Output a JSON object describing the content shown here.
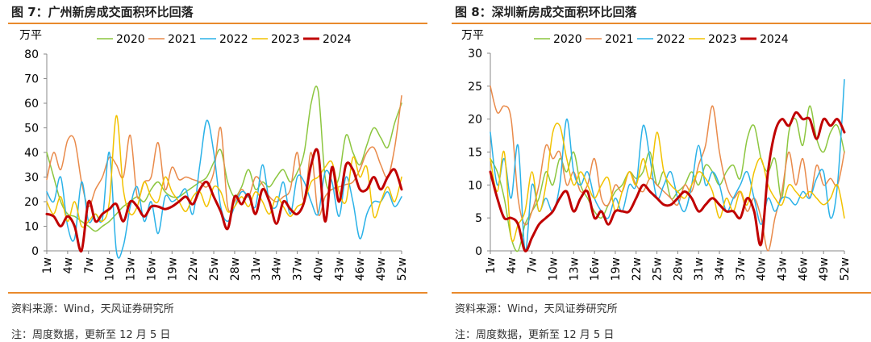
{
  "charts": [
    {
      "title": "图 7：广州新房成交面积环比回落",
      "source": "资料来源：Wind，天风证券研究所",
      "note": "注：周度数据，更新至 12 月 5 日",
      "chart_data": {
        "type": "line",
        "unit": "万平",
        "ylim": [
          0,
          80
        ],
        "yticks": [
          0,
          10,
          20,
          30,
          40,
          50,
          60,
          70,
          80
        ],
        "xtick_labels": [
          "1w",
          "4w",
          "7w",
          "10w",
          "13w",
          "16w",
          "19w",
          "22w",
          "25w",
          "28w",
          "31w",
          "34w",
          "37w",
          "40w",
          "43w",
          "46w",
          "49w",
          "52w"
        ],
        "x": [
          1,
          2,
          3,
          4,
          5,
          6,
          7,
          8,
          9,
          10,
          11,
          12,
          13,
          14,
          15,
          16,
          17,
          18,
          19,
          20,
          21,
          22,
          23,
          24,
          25,
          26,
          27,
          28,
          29,
          30,
          31,
          32,
          33,
          34,
          35,
          36,
          37,
          38,
          39,
          40,
          41,
          42,
          43,
          44,
          45,
          46,
          47,
          48,
          49,
          50,
          51,
          52
        ],
        "grid": false,
        "legend": "top",
        "series": [
          {
            "name": "2020",
            "color": "#8cc63f",
            "width": 1.5,
            "values": [
              40,
              30,
              20,
              15,
              14,
              12,
              10,
              8,
              10,
              12,
              15,
              18,
              20,
              22,
              20,
              25,
              28,
              24,
              22,
              22,
              24,
              26,
              28,
              30,
              36,
              41,
              28,
              22,
              26,
              33,
              25,
              28,
              26,
              30,
              33,
              28,
              32,
              40,
              60,
              65,
              30,
              25,
              30,
              47,
              40,
              35,
              43,
              50,
              46,
              42,
              52,
              60
            ]
          },
          {
            "name": "2021",
            "color": "#e98a4a",
            "width": 1.5,
            "values": [
              29,
              40,
              33,
              45,
              45,
              28,
              18,
              25,
              30,
              38,
              35,
              30,
              47,
              22,
              28,
              30,
              44,
              25,
              34,
              29,
              30,
              29,
              28,
              26,
              32,
              50,
              18,
              20,
              25,
              22,
              30,
              27,
              22,
              20,
              22,
              25,
              40,
              20,
              40,
              15,
              22,
              25,
              26,
              27,
              28,
              33,
              40,
              42,
              35,
              30,
              42,
              63
            ]
          },
          {
            "name": "2022",
            "color": "#2bb2e8",
            "width": 1.5,
            "values": [
              24,
              20,
              30,
              10,
              5,
              28,
              12,
              15,
              13,
              40,
              0,
              2,
              18,
              26,
              12,
              20,
              7,
              22,
              20,
              22,
              25,
              15,
              35,
              53,
              40,
              18,
              12,
              18,
              24,
              22,
              18,
              35,
              20,
              18,
              28,
              15,
              30,
              28,
              20,
              15,
              32,
              28,
              14,
              30,
              20,
              5,
              15,
              20,
              20,
              24,
              18,
              22
            ]
          },
          {
            "name": "2023",
            "color": "#f2c200",
            "width": 1.5,
            "values": [
              20,
              15,
              22,
              12,
              20,
              10,
              12,
              15,
              12,
              20,
              55,
              25,
              15,
              18,
              28,
              22,
              20,
              30,
              24,
              20,
              16,
              22,
              24,
              18,
              26,
              24,
              16,
              18,
              22,
              18,
              24,
              20,
              15,
              22,
              18,
              14,
              18,
              20,
              28,
              30,
              34,
              36,
              24,
              20,
              38,
              30,
              34,
              14,
              20,
              26,
              20,
              30
            ]
          },
          {
            "name": "2024",
            "color": "#c00000",
            "width": 3,
            "values": [
              15,
              14,
              10,
              14,
              10,
              0,
              20,
              12,
              15,
              17,
              19,
              12,
              20,
              18,
              14,
              18,
              18,
              17,
              18,
              20,
              22,
              19,
              25,
              28,
              22,
              16,
              9,
              22,
              19,
              23,
              15,
              25,
              20,
              11,
              20,
              17,
              15,
              20,
              35,
              40,
              12,
              34,
              20,
              35,
              33,
              25,
              25,
              30,
              25,
              30,
              33,
              25
            ]
          }
        ]
      }
    },
    {
      "title": "图 8：深圳新房成交面积环比回落",
      "source": "资料来源：Wind，天风证券研究所",
      "note": "注：周度数据，更新至 12 月 5 日",
      "chart_data": {
        "type": "line",
        "unit": "万平",
        "ylim": [
          0,
          30
        ],
        "yticks": [
          0,
          5,
          10,
          15,
          20,
          25,
          30
        ],
        "xtick_labels": [
          "1w",
          "4w",
          "7w",
          "10w",
          "13w",
          "16w",
          "19w",
          "22w",
          "25w",
          "28w",
          "31w",
          "34w",
          "37w",
          "40w",
          "43w",
          "46w",
          "49w",
          "52w"
        ],
        "x": [
          1,
          2,
          3,
          4,
          5,
          6,
          7,
          8,
          9,
          10,
          11,
          12,
          13,
          14,
          15,
          16,
          17,
          18,
          19,
          20,
          21,
          22,
          23,
          24,
          25,
          26,
          27,
          28,
          29,
          30,
          31,
          32,
          33,
          34,
          35,
          36,
          37,
          38,
          39,
          40,
          41,
          42,
          43,
          44,
          45,
          46,
          47,
          48,
          49,
          50,
          51,
          52
        ],
        "grid": false,
        "legend": "top",
        "series": [
          {
            "name": "2020",
            "color": "#8cc63f",
            "width": 1.5,
            "values": [
              14,
              12,
              8,
              2,
              0,
              4,
              6,
              8,
              12,
              10,
              14,
              12,
              15,
              10,
              8,
              6,
              5,
              7,
              9,
              10,
              12,
              11,
              12,
              15,
              10,
              12,
              8,
              9,
              10,
              12,
              10,
              13,
              12,
              10,
              12,
              13,
              11,
              17,
              19,
              14,
              12,
              14,
              8,
              18,
              20,
              16,
              22,
              17,
              15,
              18,
              19,
              15
            ]
          },
          {
            "name": "2021",
            "color": "#e98a4a",
            "width": 1.5,
            "values": [
              25,
              21,
              22,
              20,
              8,
              4,
              6,
              10,
              16,
              14,
              15,
              10,
              12,
              9,
              10,
              14,
              8,
              7,
              10,
              9,
              12,
              10,
              9,
              11,
              10,
              9,
              8,
              7,
              10,
              9,
              13,
              16,
              22,
              15,
              10,
              8,
              9,
              6,
              8,
              5,
              0,
              5,
              9,
              15,
              10,
              14,
              8,
              13,
              10,
              11,
              10,
              15
            ]
          },
          {
            "name": "2022",
            "color": "#2bb2e8",
            "width": 1.5,
            "values": [
              18,
              10,
              14,
              8,
              16,
              0,
              10,
              6,
              8,
              6,
              10,
              20,
              12,
              10,
              12,
              8,
              6,
              5,
              8,
              6,
              10,
              10,
              19,
              14,
              8,
              10,
              12,
              8,
              6,
              10,
              16,
              10,
              12,
              10,
              6,
              8,
              10,
              12,
              8,
              4,
              8,
              6,
              8,
              8,
              7,
              9,
              8,
              11,
              12,
              5,
              10,
              26
            ]
          },
          {
            "name": "2023",
            "color": "#f2c200",
            "width": 1.5,
            "values": [
              14,
              9,
              15,
              2,
              4,
              6,
              12,
              6,
              10,
              18,
              19,
              14,
              10,
              12,
              10,
              8,
              10,
              11,
              6,
              9,
              12,
              10,
              14,
              11,
              18,
              12,
              10,
              9,
              8,
              10,
              12,
              11,
              9,
              5,
              8,
              6,
              9,
              7,
              12,
              14,
              10,
              8,
              7,
              10,
              9,
              8,
              9,
              8,
              7,
              8,
              10,
              5
            ]
          },
          {
            "name": "2024",
            "color": "#c00000",
            "width": 3,
            "values": [
              12,
              8,
              5,
              5,
              4,
              0,
              2,
              4,
              5,
              6,
              8,
              9,
              6,
              8,
              9,
              5,
              6,
              4,
              6,
              6,
              6,
              8,
              10,
              9,
              8,
              7,
              7,
              8,
              9,
              8,
              6,
              7,
              8,
              7,
              6,
              6,
              5,
              8,
              6,
              1,
              12,
              18,
              20,
              19,
              21,
              20,
              20,
              17,
              20,
              19,
              20,
              18
            ]
          }
        ]
      }
    }
  ]
}
